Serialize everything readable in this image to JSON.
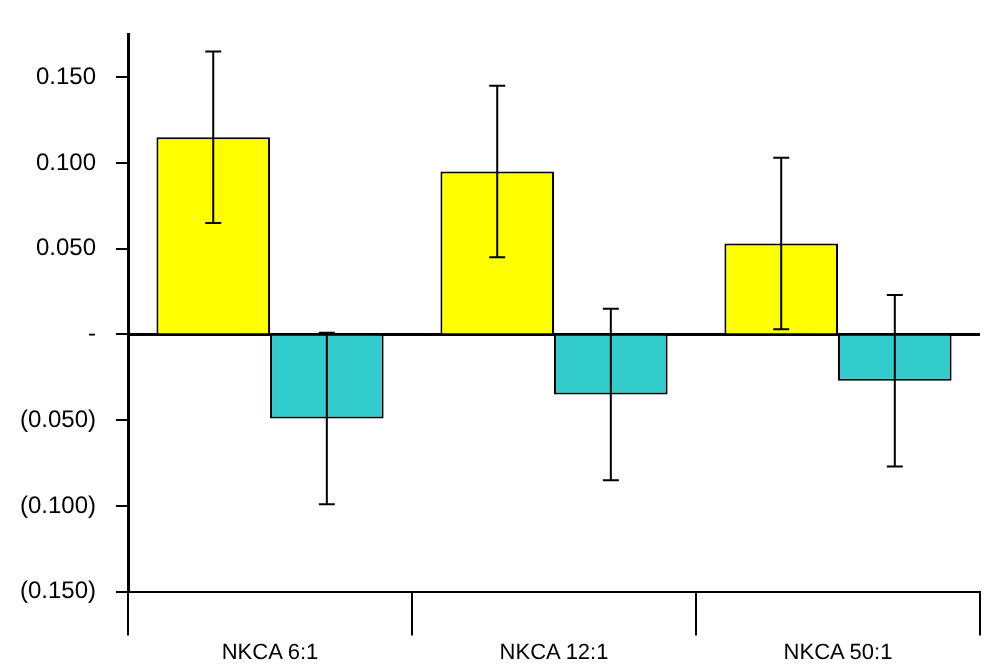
{
  "chart_data": {
    "type": "bar",
    "categories": [
      "NKCA 6:1",
      "NKCA 12:1",
      "NKCA 50:1"
    ],
    "series": [
      {
        "color": "#ffff00",
        "values": [
          0.115,
          0.095,
          0.053
        ],
        "errors": [
          0.05,
          0.05,
          0.05
        ]
      },
      {
        "color": "#33cccc",
        "values": [
          -0.049,
          -0.035,
          -0.027
        ],
        "errors": [
          0.05,
          0.05,
          0.05
        ]
      }
    ],
    "ylim": [
      -0.15,
      0.175
    ],
    "yticks": [
      {
        "value": -0.15,
        "label": "(0.150)"
      },
      {
        "value": -0.1,
        "label": "(0.100)"
      },
      {
        "value": -0.05,
        "label": "(0.050)"
      },
      {
        "value": 0,
        "label": "-"
      },
      {
        "value": 0.05,
        "label": "0.050"
      },
      {
        "value": 0.1,
        "label": "0.100"
      },
      {
        "value": 0.15,
        "label": "0.150"
      }
    ],
    "ref_lines": [
      {
        "axis": "y",
        "value": 0,
        "color": "#000000"
      }
    ],
    "grid": false,
    "legend": false
  }
}
